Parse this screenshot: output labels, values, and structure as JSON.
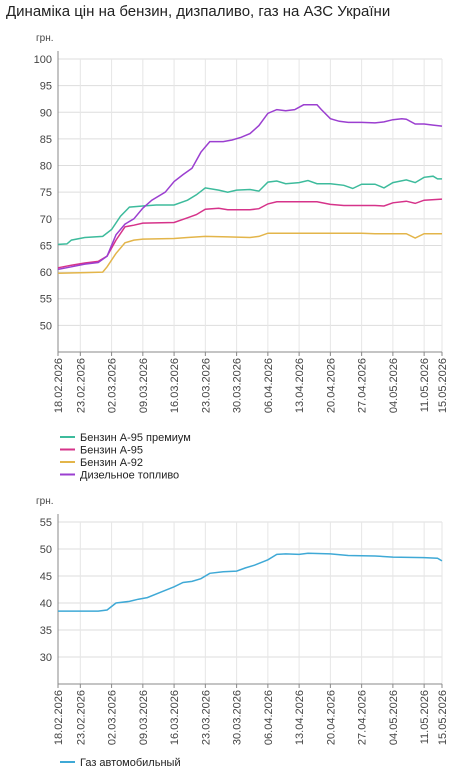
{
  "chart_data": [
    {
      "type": "line",
      "title": "Динаміка цін на бензин, дизпаливо, газ на АЗС України",
      "y_label": "грн.",
      "xlim": [
        "18.02.2026",
        "15.05.2026"
      ],
      "xticks": [
        "18.02.2026",
        "23.02.2026",
        "02.03.2026",
        "09.03.2026",
        "16.03.2026",
        "23.03.2026",
        "30.03.2026",
        "06.04.2026",
        "13.04.2026",
        "20.04.2026",
        "27.04.2026",
        "04.05.2026",
        "11.05.2026",
        "15.05.2026"
      ],
      "ylim": [
        45,
        100
      ],
      "yticks": [
        50,
        55,
        60,
        65,
        70,
        75,
        80,
        85,
        90,
        95,
        100
      ],
      "grid": true,
      "series": [
        {
          "name": "Бензин А-95 премиум",
          "color": "#3dbb9c",
          "x": [
            "18.02.2026",
            "20.02.2026",
            "21.02.2026",
            "24.02.2026",
            "28.02.2026",
            "02.03.2026",
            "04.03.2026",
            "06.03.2026",
            "09.03.2026",
            "12.03.2026",
            "16.03.2026",
            "19.03.2026",
            "21.03.2026",
            "23.03.2026",
            "26.03.2026",
            "28.03.2026",
            "30.03.2026",
            "02.04.2026",
            "04.04.2026",
            "06.04.2026",
            "08.04.2026",
            "10.04.2026",
            "13.04.2026",
            "15.04.2026",
            "17.04.2026",
            "20.04.2026",
            "23.04.2026",
            "25.04.2026",
            "27.04.2026",
            "30.04.2026",
            "02.05.2026",
            "04.05.2026",
            "07.05.2026",
            "09.05.2026",
            "11.05.2026",
            "13.05.2026",
            "14.05.2026",
            "15.05.2026"
          ],
          "values": [
            65.2,
            65.3,
            66.0,
            66.5,
            66.7,
            68.0,
            70.5,
            72.2,
            72.4,
            72.6,
            72.6,
            73.5,
            74.5,
            75.8,
            75.4,
            75.0,
            75.4,
            75.5,
            75.2,
            76.9,
            77.1,
            76.6,
            76.8,
            77.2,
            76.6,
            76.6,
            76.3,
            75.7,
            76.5,
            76.5,
            75.8,
            76.8,
            77.3,
            76.8,
            77.8,
            78.0,
            77.5,
            77.5
          ]
        },
        {
          "name": "Бензин А-95",
          "color": "#d6338a",
          "x": [
            "18.02.2026",
            "21.02.2026",
            "24.02.2026",
            "27.02.2026",
            "01.03.2026",
            "03.03.2026",
            "05.03.2026",
            "07.03.2026",
            "09.03.2026",
            "16.03.2026",
            "19.03.2026",
            "21.03.2026",
            "23.03.2026",
            "26.03.2026",
            "28.03.2026",
            "02.04.2026",
            "04.04.2026",
            "06.04.2026",
            "08.04.2026",
            "13.04.2026",
            "17.04.2026",
            "20.04.2026",
            "23.04.2026",
            "30.04.2026",
            "02.05.2026",
            "04.05.2026",
            "07.05.2026",
            "09.05.2026",
            "11.05.2026",
            "15.05.2026"
          ],
          "values": [
            60.8,
            61.3,
            61.7,
            62.0,
            63.0,
            66.0,
            68.5,
            68.8,
            69.2,
            69.3,
            70.2,
            70.8,
            71.8,
            72.0,
            71.7,
            71.7,
            71.9,
            72.8,
            73.2,
            73.2,
            73.2,
            72.7,
            72.5,
            72.5,
            72.4,
            73.0,
            73.3,
            72.9,
            73.5,
            73.7
          ]
        },
        {
          "name": "Бензин А-92",
          "color": "#e3b54a",
          "x": [
            "18.02.2026",
            "24.02.2026",
            "28.02.2026",
            "01.03.2026",
            "03.03.2026",
            "05.03.2026",
            "07.03.2026",
            "09.03.2026",
            "16.03.2026",
            "19.03.2026",
            "23.03.2026",
            "28.03.2026",
            "02.04.2026",
            "04.04.2026",
            "06.04.2026",
            "13.04.2026",
            "20.04.2026",
            "27.04.2026",
            "30.04.2026",
            "07.05.2026",
            "09.05.2026",
            "11.05.2026",
            "15.05.2026"
          ],
          "values": [
            59.8,
            59.9,
            60.0,
            61.0,
            63.5,
            65.5,
            66.0,
            66.2,
            66.3,
            66.5,
            66.7,
            66.6,
            66.5,
            66.7,
            67.3,
            67.3,
            67.3,
            67.3,
            67.2,
            67.2,
            66.4,
            67.2,
            67.2
          ]
        },
        {
          "name": "Дизельное топливо",
          "color": "#9b3fd0",
          "x": [
            "18.02.2026",
            "21.02.2026",
            "24.02.2026",
            "27.02.2026",
            "01.03.2026",
            "03.03.2026",
            "05.03.2026",
            "07.03.2026",
            "09.03.2026",
            "11.03.2026",
            "14.03.2026",
            "16.03.2026",
            "18.03.2026",
            "20.03.2026",
            "22.03.2026",
            "24.03.2026",
            "27.03.2026",
            "29.03.2026",
            "31.03.2026",
            "02.04.2026",
            "04.04.2026",
            "06.04.2026",
            "08.04.2026",
            "10.04.2026",
            "12.04.2026",
            "14.04.2026",
            "17.04.2026",
            "18.04.2026",
            "20.04.2026",
            "22.04.2026",
            "24.04.2026",
            "27.04.2026",
            "30.04.2026",
            "02.05.2026",
            "04.05.2026",
            "06.05.2026",
            "07.05.2026",
            "09.05.2026",
            "11.05.2026",
            "13.05.2026",
            "15.05.2026"
          ],
          "values": [
            60.5,
            61.0,
            61.5,
            61.8,
            63.0,
            67.0,
            69.0,
            70.0,
            72.0,
            73.5,
            75.0,
            77.0,
            78.3,
            79.5,
            82.5,
            84.5,
            84.5,
            84.8,
            85.3,
            86.0,
            87.5,
            89.8,
            90.5,
            90.3,
            90.5,
            91.4,
            91.4,
            90.5,
            88.8,
            88.3,
            88.1,
            88.1,
            88.0,
            88.2,
            88.6,
            88.8,
            88.7,
            87.8,
            87.8,
            87.6,
            87.4
          ]
        }
      ]
    },
    {
      "type": "line",
      "y_label": "грн.",
      "xlim": [
        "18.02.2026",
        "15.05.2026"
      ],
      "xticks": [
        "18.02.2026",
        "23.02.2026",
        "02.03.2026",
        "09.03.2026",
        "16.03.2026",
        "23.03.2026",
        "30.03.2026",
        "06.04.2026",
        "13.04.2026",
        "20.04.2026",
        "27.04.2026",
        "04.05.2026",
        "11.05.2026",
        "15.05.2026"
      ],
      "ylim": [
        25,
        55
      ],
      "yticks": [
        30,
        35,
        40,
        45,
        50,
        55
      ],
      "grid": true,
      "series": [
        {
          "name": "Газ автомобильный",
          "color": "#3fa9d6",
          "x": [
            "18.02.2026",
            "27.02.2026",
            "01.03.2026",
            "03.03.2026",
            "06.03.2026",
            "08.03.2026",
            "10.03.2026",
            "13.03.2026",
            "16.03.2026",
            "18.03.2026",
            "20.03.2026",
            "22.03.2026",
            "24.03.2026",
            "27.03.2026",
            "30.03.2026",
            "01.04.2026",
            "03.04.2026",
            "06.04.2026",
            "08.04.2026",
            "10.04.2026",
            "13.04.2026",
            "15.04.2026",
            "20.04.2026",
            "24.04.2026",
            "30.04.2026",
            "04.05.2026",
            "11.05.2026",
            "14.05.2026",
            "15.05.2026"
          ],
          "values": [
            38.5,
            38.5,
            38.7,
            40.0,
            40.3,
            40.7,
            41.0,
            42.0,
            43.0,
            43.8,
            44.0,
            44.5,
            45.5,
            45.8,
            45.9,
            46.5,
            47.0,
            48.0,
            49.0,
            49.1,
            49.0,
            49.2,
            49.1,
            48.8,
            48.7,
            48.5,
            48.4,
            48.3,
            47.8
          ]
        }
      ]
    }
  ]
}
